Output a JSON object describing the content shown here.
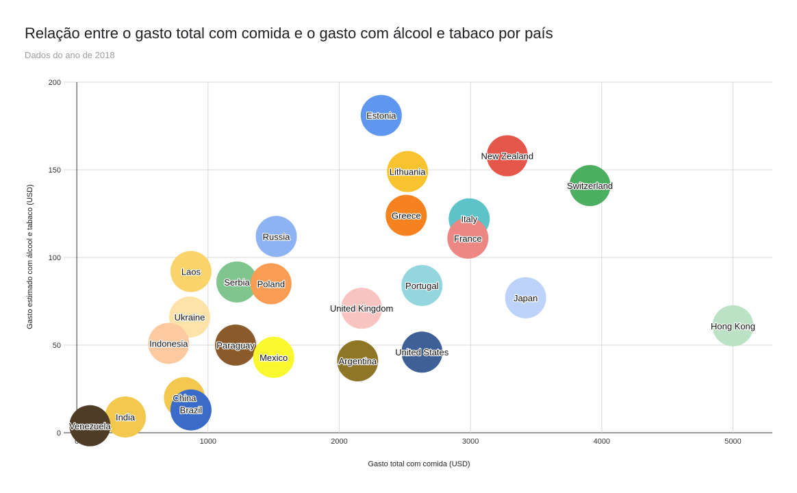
{
  "chart_data": {
    "type": "bubble",
    "title": "Relação entre o gasto total com comida e o gasto com álcool e tabaco por país",
    "subtitle": "Dados do ano de 2018",
    "xlabel": "Gasto total com comida (USD)",
    "ylabel": "Gasto estimado com álcool e tabaco (USD)",
    "xlim": [
      -100,
      5300
    ],
    "ylim": [
      0,
      200
    ],
    "xticks": [
      0,
      1000,
      2000,
      3000,
      4000,
      5000
    ],
    "yticks": [
      0,
      50,
      100,
      150,
      200
    ],
    "grid": true,
    "legend": "none",
    "points": [
      {
        "name": "Estonia",
        "x": 2320,
        "y": 181,
        "color": "#5f97f0"
      },
      {
        "name": "New Zealand",
        "x": 3280,
        "y": 158,
        "color": "#e5574a"
      },
      {
        "name": "Lithuania",
        "x": 2520,
        "y": 149,
        "color": "#f8c32e"
      },
      {
        "name": "Switzerland",
        "x": 3910,
        "y": 141,
        "color": "#4cae61"
      },
      {
        "name": "Greece",
        "x": 2510,
        "y": 124,
        "color": "#f6821f"
      },
      {
        "name": "Italy",
        "x": 2990,
        "y": 122,
        "color": "#5ec3c9"
      },
      {
        "name": "France",
        "x": 2980,
        "y": 111,
        "color": "#ec8784"
      },
      {
        "name": "Russia",
        "x": 1520,
        "y": 112,
        "color": "#8eb3f3"
      },
      {
        "name": "Laos",
        "x": 870,
        "y": 92,
        "color": "#fad46a"
      },
      {
        "name": "Serbia",
        "x": 1220,
        "y": 86,
        "color": "#7fc58d"
      },
      {
        "name": "Poland",
        "x": 1480,
        "y": 85,
        "color": "#f99d55"
      },
      {
        "name": "Portugal",
        "x": 2630,
        "y": 84,
        "color": "#94d6de"
      },
      {
        "name": "Japan",
        "x": 3420,
        "y": 77,
        "color": "#bed3fa"
      },
      {
        "name": "United Kingdom",
        "x": 2170,
        "y": 71,
        "color": "#f8c3c1"
      },
      {
        "name": "Ukraine",
        "x": 860,
        "y": 66,
        "color": "#fde3a7"
      },
      {
        "name": "Hong Kong",
        "x": 5000,
        "y": 61,
        "color": "#bce2c6"
      },
      {
        "name": "Indonesia",
        "x": 700,
        "y": 51,
        "color": "#fdc9a0"
      },
      {
        "name": "Paraguay",
        "x": 1210,
        "y": 50,
        "color": "#8b5a2b"
      },
      {
        "name": "United States",
        "x": 2630,
        "y": 46,
        "color": "#3f5f97"
      },
      {
        "name": "Mexico",
        "x": 1500,
        "y": 43,
        "color": "#f8f82c"
      },
      {
        "name": "Argentina",
        "x": 2140,
        "y": 41,
        "color": "#8f7526"
      },
      {
        "name": "China",
        "x": 820,
        "y": 20,
        "color": "#f2c84e"
      },
      {
        "name": "Brazil",
        "x": 870,
        "y": 13,
        "color": "#3a6bc8"
      },
      {
        "name": "India",
        "x": 370,
        "y": 9,
        "color": "#f2c84e"
      },
      {
        "name": "Venezuela",
        "x": 100,
        "y": 4,
        "color": "#4f3c26"
      }
    ]
  }
}
